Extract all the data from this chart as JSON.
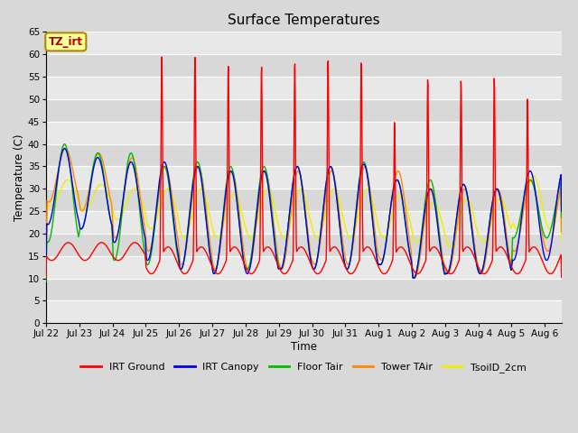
{
  "title": "Surface Temperatures",
  "xlabel": "Time",
  "ylabel": "Temperature (C)",
  "ylim": [
    0,
    65
  ],
  "yticks": [
    0,
    5,
    10,
    15,
    20,
    25,
    30,
    35,
    40,
    45,
    50,
    55,
    60,
    65
  ],
  "x_tick_labels": [
    "Jul 22",
    "Jul 23",
    "Jul 24",
    "Jul 25",
    "Jul 26",
    "Jul 27",
    "Jul 28",
    "Jul 29",
    "Jul 30",
    "Jul 31",
    "Aug 1",
    "Aug 2",
    "Aug 3",
    "Aug 4",
    "Aug 5",
    "Aug 6"
  ],
  "series": [
    {
      "name": "IRT Ground",
      "color": "#FF0000"
    },
    {
      "name": "IRT Canopy",
      "color": "#0000EE"
    },
    {
      "name": "Floor Tair",
      "color": "#00BB00"
    },
    {
      "name": "Tower TAir",
      "color": "#FF8800"
    },
    {
      "name": "TsoilD_2cm",
      "color": "#EEEE00"
    }
  ],
  "annotation_text": "TZ_irt",
  "annotation_color": "#AA0000",
  "annotation_bg": "#FFFF99",
  "annotation_border": "#AA8800",
  "bg_color": "#D8D8D8",
  "stripe_color": "#E8E8E8",
  "figsize": [
    6.4,
    4.8
  ],
  "dpi": 100
}
